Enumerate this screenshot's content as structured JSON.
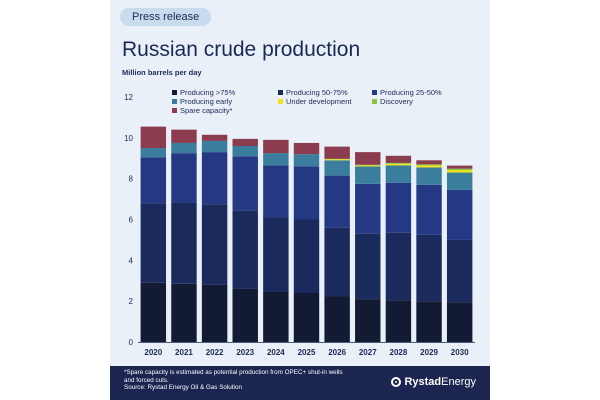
{
  "header": {
    "badge": "Press release",
    "title": "Russian crude production",
    "unit": "Million barrels per day"
  },
  "footer": {
    "note_lines": [
      "*Spare capacity is estimated as potential production from OPEC+ shut-in wells",
      "and forced cuts.",
      "Source: Rystad Energy Oil & Gas Solution"
    ],
    "brand_part1": "Rystad",
    "brand_part2": "Energy"
  },
  "chart_data": {
    "type": "bar",
    "stacked": true,
    "categories": [
      "2020",
      "2021",
      "2022",
      "2023",
      "2024",
      "2025",
      "2026",
      "2027",
      "2028",
      "2029",
      "2030"
    ],
    "ylim": [
      0,
      12
    ],
    "yticks": [
      0,
      2,
      4,
      6,
      8,
      10,
      12
    ],
    "grid": false,
    "legend_position": "top",
    "series": [
      {
        "name": "Producing >75%",
        "color": "#131a33",
        "values": [
          2.9,
          2.85,
          2.8,
          2.6,
          2.45,
          2.4,
          2.25,
          2.1,
          2.05,
          2.0,
          1.95
        ]
      },
      {
        "name": "Producing 50-75%",
        "color": "#1b2a5c",
        "values": [
          3.9,
          4.0,
          3.95,
          3.85,
          3.65,
          3.6,
          3.35,
          3.2,
          3.3,
          3.25,
          3.05
        ]
      },
      {
        "name": "Producing 25-50%",
        "color": "#243883",
        "values": [
          2.25,
          2.4,
          2.55,
          2.65,
          2.55,
          2.6,
          2.55,
          2.45,
          2.45,
          2.45,
          2.45
        ]
      },
      {
        "name": "Producing early",
        "color": "#3b7d9c",
        "values": [
          0.45,
          0.5,
          0.55,
          0.5,
          0.6,
          0.6,
          0.75,
          0.85,
          0.85,
          0.85,
          0.85
        ]
      },
      {
        "name": "Under development",
        "color": "#f2e21a",
        "values": [
          0,
          0,
          0,
          0,
          0,
          0,
          0.05,
          0.05,
          0.08,
          0.1,
          0.12
        ]
      },
      {
        "name": "Discovery",
        "color": "#8cc63e",
        "values": [
          0,
          0,
          0,
          0,
          0,
          0,
          0.02,
          0.03,
          0.04,
          0.05,
          0.07
        ]
      },
      {
        "name": "Spare capacity*",
        "color": "#8b3d4f",
        "values": [
          1.05,
          0.65,
          0.3,
          0.35,
          0.65,
          0.55,
          0.6,
          0.62,
          0.35,
          0.2,
          0.15
        ]
      }
    ]
  }
}
